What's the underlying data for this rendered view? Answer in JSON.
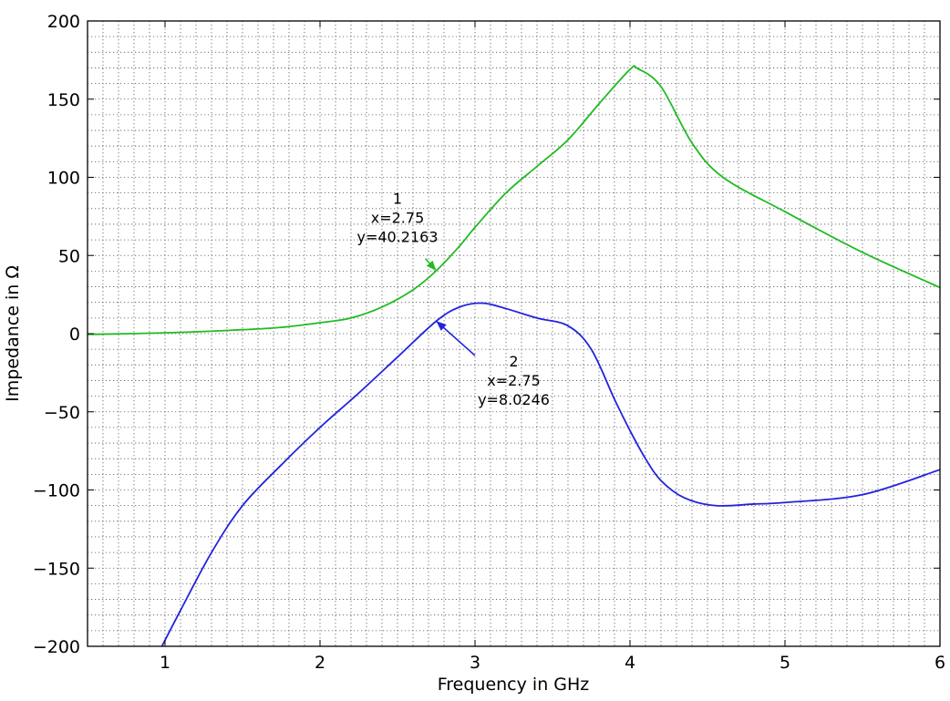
{
  "chart_data": {
    "type": "line",
    "title": "",
    "xlabel": "Frequency in GHz",
    "ylabel": "Impedance in Ω",
    "xlim": [
      0.5,
      6
    ],
    "ylim": [
      -200,
      200
    ],
    "grid": true,
    "x_ticks": [
      1,
      2,
      3,
      4,
      5,
      6
    ],
    "x_tick_labels": [
      "1",
      "2",
      "3",
      "4",
      "5",
      "6"
    ],
    "y_ticks": [
      -200,
      -150,
      -100,
      -50,
      0,
      50,
      100,
      150,
      200
    ],
    "y_tick_labels": [
      "−200",
      "−150",
      "−100",
      "−50",
      "0",
      "50",
      "100",
      "150",
      "200"
    ],
    "series": [
      {
        "color": "#22bb22",
        "points": [
          [
            0.5,
            -0.5
          ],
          [
            1.0,
            0.5
          ],
          [
            1.5,
            2.5
          ],
          [
            1.75,
            4
          ],
          [
            2.0,
            7
          ],
          [
            2.2,
            10
          ],
          [
            2.4,
            17
          ],
          [
            2.6,
            28
          ],
          [
            2.75,
            40.2163
          ],
          [
            2.9,
            56
          ],
          [
            3.0,
            68
          ],
          [
            3.2,
            90
          ],
          [
            3.4,
            107
          ],
          [
            3.6,
            124
          ],
          [
            3.8,
            147
          ],
          [
            4.0,
            169
          ],
          [
            4.05,
            169.5
          ],
          [
            4.2,
            158
          ],
          [
            4.4,
            122
          ],
          [
            4.6,
            100
          ],
          [
            5.0,
            78
          ],
          [
            5.5,
            52
          ],
          [
            6.0,
            29.5
          ]
        ]
      },
      {
        "color": "#2323dd",
        "points": [
          [
            0.98,
            -200
          ],
          [
            1.1,
            -177
          ],
          [
            1.3,
            -140
          ],
          [
            1.5,
            -110
          ],
          [
            1.75,
            -84
          ],
          [
            2.0,
            -60
          ],
          [
            2.25,
            -38
          ],
          [
            2.5,
            -15
          ],
          [
            2.75,
            8.0246
          ],
          [
            2.9,
            17
          ],
          [
            3.05,
            19.5
          ],
          [
            3.2,
            16
          ],
          [
            3.4,
            10
          ],
          [
            3.6,
            5
          ],
          [
            3.75,
            -10
          ],
          [
            3.9,
            -42
          ],
          [
            4.0,
            -62
          ],
          [
            4.1,
            -80
          ],
          [
            4.2,
            -94
          ],
          [
            4.35,
            -105
          ],
          [
            4.55,
            -110
          ],
          [
            4.8,
            -109
          ],
          [
            5.0,
            -108
          ],
          [
            5.5,
            -103
          ],
          [
            6.0,
            -87
          ]
        ]
      }
    ],
    "annotations": [
      {
        "lines": [
          "1",
          "x=2.75",
          "y=40.2163"
        ],
        "color": "#22bb22",
        "target": [
          2.75,
          40.2163
        ],
        "arrow_from": [
          2.68,
          48
        ],
        "text_anchor": [
          2.5,
          83
        ]
      },
      {
        "lines": [
          "2",
          "x=2.75",
          "y=8.0246"
        ],
        "color": "#2323dd",
        "target": [
          2.75,
          8.0246
        ],
        "arrow_from": [
          3.0,
          -14
        ],
        "text_anchor": [
          3.25,
          -21
        ]
      }
    ]
  }
}
